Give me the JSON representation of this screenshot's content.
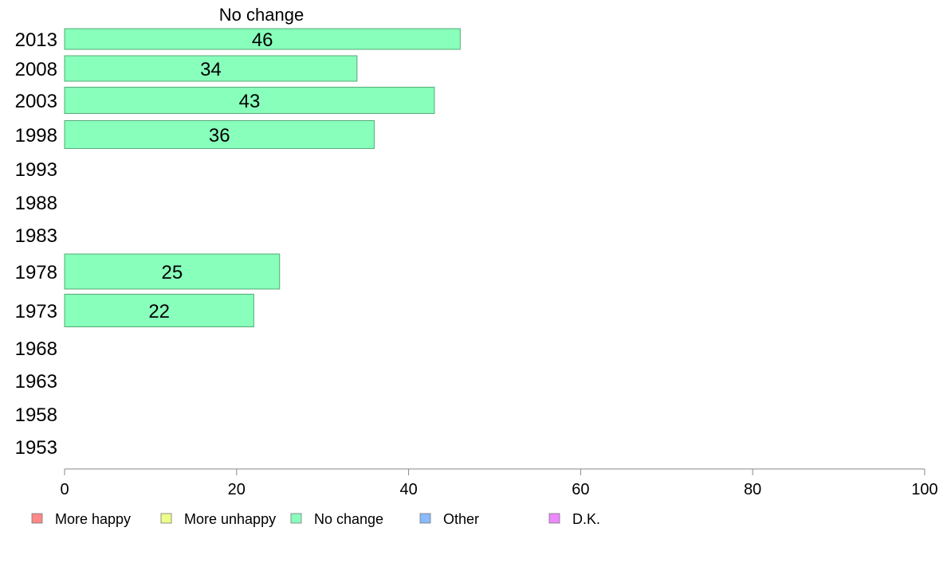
{
  "chart_data": {
    "type": "bar",
    "orientation": "horizontal",
    "title": "No change",
    "xlim": [
      0,
      100
    ],
    "x_ticks": [
      "0",
      "20",
      "40",
      "60",
      "80",
      "100"
    ],
    "categories": [
      "2013",
      "2008",
      "2003",
      "1998",
      "1993",
      "1988",
      "1983",
      "1978",
      "1973",
      "1968",
      "1963",
      "1958",
      "1953"
    ],
    "series": [
      {
        "name": "No change",
        "color": "#88ffbb",
        "values": [
          46,
          34,
          43,
          36,
          null,
          null,
          null,
          25,
          22,
          null,
          null,
          null,
          null
        ]
      }
    ],
    "legend": {
      "placement": "bottom",
      "items": [
        {
          "label": "More happy",
          "color": "#ff8888"
        },
        {
          "label": "More unhappy",
          "color": "#eeff88"
        },
        {
          "label": "No change",
          "color": "#88ffbb"
        },
        {
          "label": "Other",
          "color": "#88bbff"
        },
        {
          "label": "D.K.",
          "color": "#ee88ff"
        }
      ]
    },
    "grid": false
  }
}
